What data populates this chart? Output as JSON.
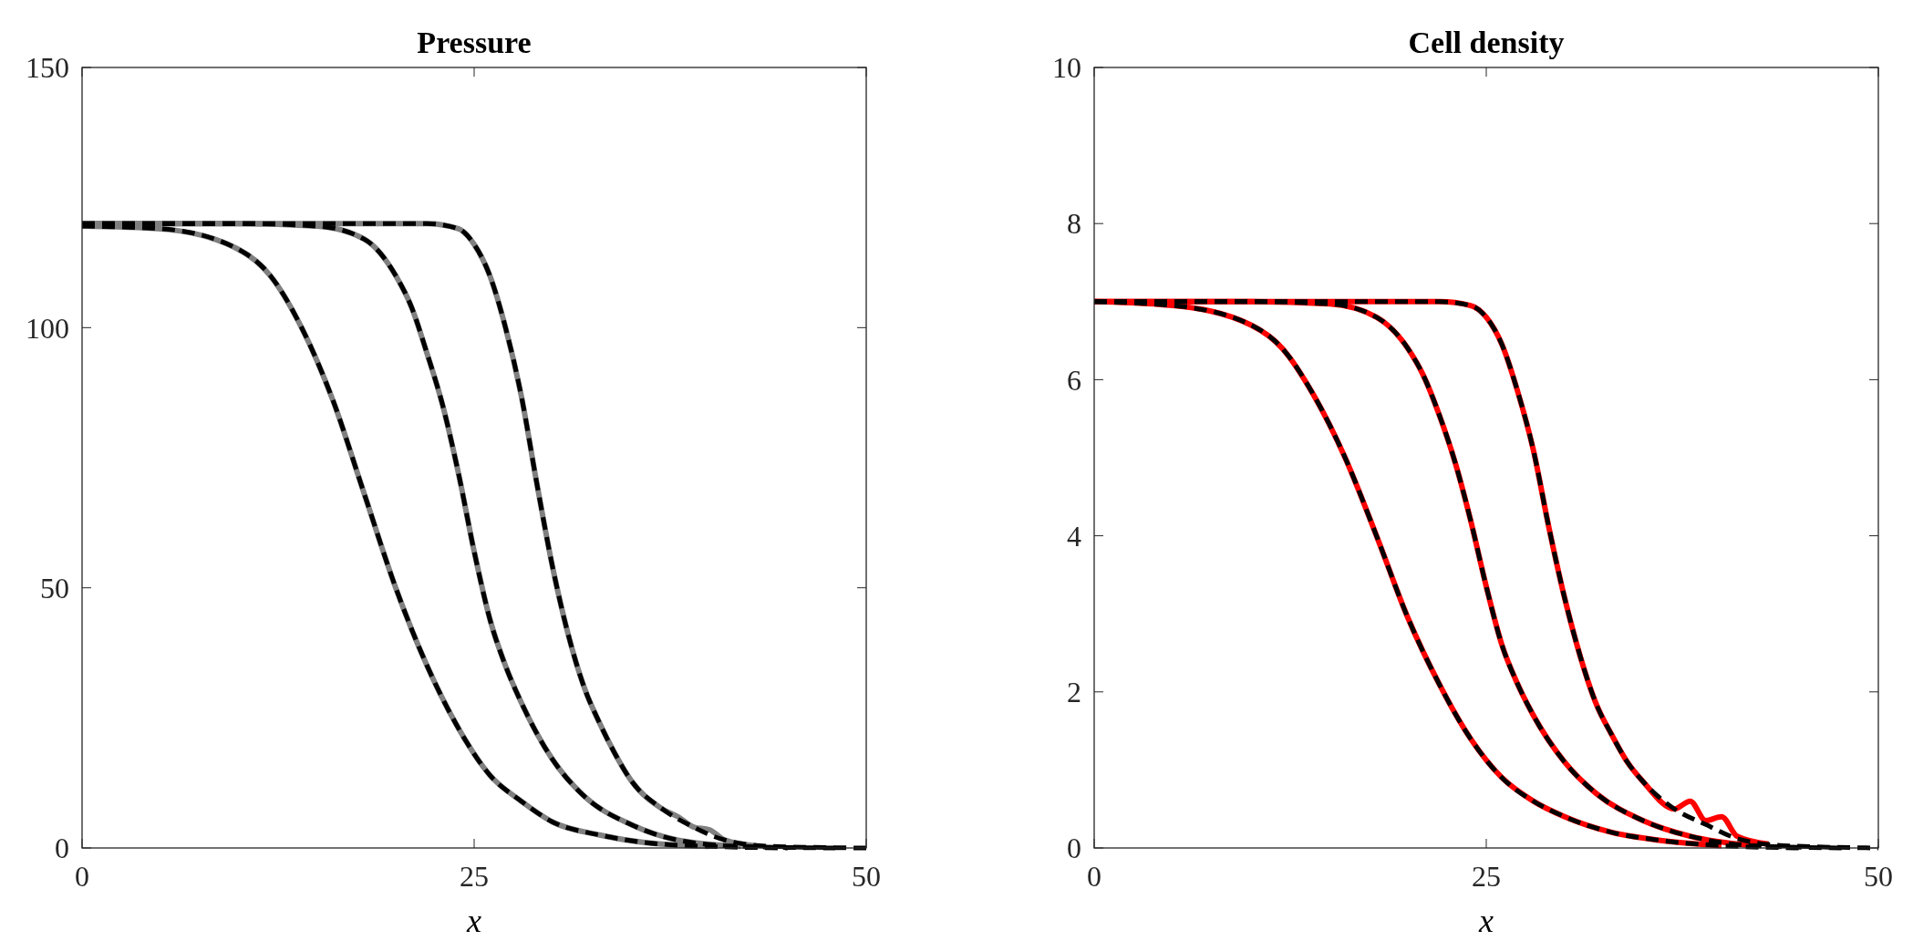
{
  "chart_data": [
    {
      "type": "line",
      "title": "Pressure",
      "xlabel": "x",
      "xlim": [
        0,
        50
      ],
      "xticks": [
        0,
        25,
        50
      ],
      "ylim": [
        0,
        150
      ],
      "yticks": [
        0,
        50,
        100,
        150
      ],
      "grid": false,
      "series": [
        {
          "color": "#808080",
          "line_style": "solid",
          "x": [
            0,
            5,
            10,
            12,
            14,
            16,
            18,
            20,
            22,
            24,
            26,
            28,
            30,
            33,
            36,
            40
          ],
          "values": [
            119.5,
            119,
            115,
            110,
            100,
            86,
            68,
            50,
            35,
            23,
            14,
            9,
            5,
            2.5,
            1,
            0.3
          ]
        },
        {
          "color": "#808080",
          "line_style": "solid",
          "x": [
            0,
            10,
            15,
            18,
            20,
            21,
            22,
            23,
            24,
            25,
            26,
            27,
            28,
            30,
            32,
            35,
            38,
            42
          ],
          "values": [
            120,
            120,
            119.5,
            117,
            110,
            104,
            95,
            85,
            72,
            57,
            44,
            35,
            28,
            17,
            10,
            4.5,
            1.5,
            0.3
          ]
        },
        {
          "color": "#808080",
          "line_style": "solid",
          "x": [
            0,
            15,
            22,
            24,
            25,
            26,
            27,
            28,
            29,
            30,
            31,
            32,
            33,
            34,
            35,
            37,
            38,
            39,
            40,
            41,
            43
          ],
          "values": [
            120,
            120,
            120,
            119,
            116,
            110,
            100,
            87,
            70,
            54,
            41,
            31,
            24,
            18,
            13,
            7.5,
            6,
            4,
            3.5,
            1.5,
            0.4
          ]
        },
        {
          "color": "#000000",
          "line_style": "dashed",
          "x": [
            0,
            5,
            10,
            12,
            14,
            16,
            18,
            20,
            22,
            24,
            26,
            28,
            30,
            33,
            36,
            40,
            45
          ],
          "values": [
            119.5,
            119,
            115,
            110,
            100,
            86,
            68,
            50,
            35,
            23,
            14,
            9,
            5,
            2.5,
            1,
            0.3,
            0
          ]
        },
        {
          "color": "#000000",
          "line_style": "dashed",
          "x": [
            0,
            10,
            15,
            18,
            20,
            21,
            22,
            23,
            24,
            25,
            26,
            27,
            28,
            30,
            32,
            35,
            38,
            42,
            48
          ],
          "values": [
            120,
            120,
            119.5,
            117,
            110,
            104,
            95,
            85,
            72,
            57,
            44,
            35,
            28,
            17,
            10,
            4.5,
            1.5,
            0.3,
            0
          ]
        },
        {
          "color": "#000000",
          "line_style": "dashed",
          "x": [
            0,
            15,
            22,
            24,
            25,
            26,
            27,
            28,
            29,
            30,
            31,
            32,
            33,
            34,
            35,
            37,
            39,
            41,
            44,
            50
          ],
          "values": [
            120,
            120,
            120,
            119,
            116,
            110,
            100,
            87,
            70,
            54,
            41,
            31,
            24,
            18,
            13,
            7.5,
            4,
            1.5,
            0.3,
            0
          ]
        }
      ]
    },
    {
      "type": "line",
      "title": "Cell density",
      "xlabel": "x",
      "xlim": [
        0,
        50
      ],
      "xticks": [
        0,
        25,
        50
      ],
      "ylim": [
        0,
        10
      ],
      "yticks": [
        0,
        2,
        4,
        6,
        8,
        10
      ],
      "grid": false,
      "series": [
        {
          "color": "#ff0000",
          "line_style": "solid",
          "x": [
            0,
            5,
            10,
            12,
            14,
            16,
            18,
            20,
            22,
            24,
            26,
            28,
            30,
            33,
            36,
            40
          ],
          "values": [
            7,
            6.95,
            6.7,
            6.4,
            5.8,
            5,
            4,
            2.95,
            2.1,
            1.4,
            0.9,
            0.6,
            0.4,
            0.2,
            0.1,
            0.03
          ]
        },
        {
          "color": "#ff0000",
          "line_style": "solid",
          "x": [
            0,
            10,
            15,
            18,
            20,
            21,
            22,
            23,
            24,
            25,
            26,
            27,
            28,
            30,
            32,
            35,
            38,
            42
          ],
          "values": [
            7,
            7,
            6.97,
            6.8,
            6.4,
            6.05,
            5.55,
            4.95,
            4.2,
            3.35,
            2.6,
            2.1,
            1.7,
            1.1,
            0.7,
            0.35,
            0.15,
            0.03
          ]
        },
        {
          "color": "#ff0000",
          "line_style": "solid",
          "x": [
            0,
            15,
            22,
            24,
            25,
            26,
            27,
            28,
            29,
            30,
            31,
            32,
            33,
            34,
            35,
            37,
            38,
            39,
            40,
            41,
            43
          ],
          "values": [
            7,
            7,
            7,
            6.95,
            6.8,
            6.45,
            5.85,
            5.1,
            4.1,
            3.2,
            2.45,
            1.85,
            1.45,
            1.1,
            0.85,
            0.5,
            0.6,
            0.35,
            0.4,
            0.15,
            0.05
          ]
        },
        {
          "color": "#000000",
          "line_style": "dashed",
          "x": [
            0,
            5,
            10,
            12,
            14,
            16,
            18,
            20,
            22,
            24,
            26,
            28,
            30,
            33,
            36,
            40,
            45
          ],
          "values": [
            7,
            6.95,
            6.7,
            6.4,
            5.8,
            5,
            4,
            2.95,
            2.1,
            1.4,
            0.9,
            0.6,
            0.4,
            0.2,
            0.1,
            0.03,
            0
          ]
        },
        {
          "color": "#000000",
          "line_style": "dashed",
          "x": [
            0,
            10,
            15,
            18,
            20,
            21,
            22,
            23,
            24,
            25,
            26,
            27,
            28,
            30,
            32,
            35,
            38,
            42,
            48
          ],
          "values": [
            7,
            7,
            6.97,
            6.8,
            6.4,
            6.05,
            5.55,
            4.95,
            4.2,
            3.35,
            2.6,
            2.1,
            1.7,
            1.1,
            0.7,
            0.35,
            0.15,
            0.03,
            0
          ]
        },
        {
          "color": "#000000",
          "line_style": "dashed",
          "x": [
            0,
            15,
            22,
            24,
            25,
            26,
            27,
            28,
            29,
            30,
            31,
            32,
            33,
            34,
            35,
            37,
            39,
            41,
            44,
            50
          ],
          "values": [
            7,
            7,
            7,
            6.95,
            6.8,
            6.45,
            5.85,
            5.1,
            4.1,
            3.2,
            2.45,
            1.85,
            1.45,
            1.1,
            0.85,
            0.5,
            0.3,
            0.12,
            0.03,
            0
          ]
        }
      ]
    }
  ]
}
